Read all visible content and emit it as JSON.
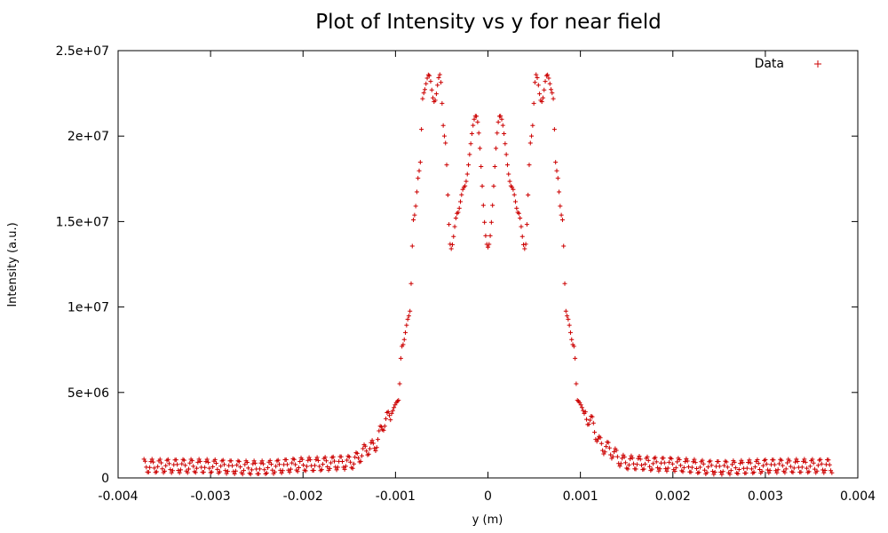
{
  "chart_data": {
    "type": "scatter",
    "title": "Plot of Intensity vs y for near field",
    "xlabel": "y (m)",
    "ylabel": "Intensity (a.u.)",
    "xlim": [
      -0.004,
      0.004
    ],
    "ylim": [
      0,
      25000000
    ],
    "xticks": [
      -0.004,
      -0.003,
      -0.002,
      -0.001,
      0,
      0.001,
      0.002,
      0.003,
      0.004
    ],
    "xtick_labels": [
      "-0.004",
      "-0.003",
      "-0.002",
      "-0.001",
      "0",
      "0.001",
      "0.002",
      "0.003",
      "0.004"
    ],
    "yticks": [
      0,
      5000000,
      10000000,
      15000000,
      20000000,
      25000000
    ],
    "ytick_labels": [
      "0",
      "5e+06",
      "1e+07",
      "1.5e+07",
      "2e+07",
      "2.5e+07"
    ],
    "grid": false,
    "legend_position": "top-right",
    "marker": "+",
    "series": [
      {
        "name": "Data",
        "color": "#cc0000",
        "x_range": [
          -0.00372,
          0.00372
        ],
        "n_points": 601,
        "profile": [
          [
            -0.00372,
            700000
          ],
          [
            -0.00315,
            700000
          ],
          [
            -0.0025,
            600000
          ],
          [
            -0.0019,
            800000
          ],
          [
            -0.0015,
            900000
          ],
          [
            -0.00125,
            1800000
          ],
          [
            -0.00108,
            3500000
          ],
          [
            -0.00097,
            4500000
          ],
          [
            -0.00093,
            7700000
          ],
          [
            -0.00085,
            9500000
          ],
          [
            -0.0008,
            15300000
          ],
          [
            -0.00074,
            18000000
          ],
          [
            -0.0007,
            22500000
          ],
          [
            -0.00064,
            23600000
          ],
          [
            -0.00058,
            22000000
          ],
          [
            -0.00052,
            23600000
          ],
          [
            -0.00047,
            20000000
          ],
          [
            -0.0004,
            13400000
          ],
          [
            -0.00033,
            15500000
          ],
          [
            -0.00026,
            17000000
          ],
          [
            -0.00013,
            21200000
          ],
          [
            0.0,
            13500000
          ],
          [
            0.00013,
            21200000
          ],
          [
            0.00026,
            17000000
          ],
          [
            0.00033,
            15500000
          ],
          [
            0.0004,
            13400000
          ],
          [
            0.00047,
            20000000
          ],
          [
            0.00052,
            23600000
          ],
          [
            0.00058,
            22000000
          ],
          [
            0.00064,
            23600000
          ],
          [
            0.0007,
            22500000
          ],
          [
            0.00074,
            18000000
          ],
          [
            0.0008,
            15300000
          ],
          [
            0.00085,
            9500000
          ],
          [
            0.00093,
            7700000
          ],
          [
            0.00097,
            4500000
          ],
          [
            0.00108,
            3500000
          ],
          [
            0.00125,
            1800000
          ],
          [
            0.0015,
            900000
          ],
          [
            0.0019,
            800000
          ],
          [
            0.0025,
            600000
          ],
          [
            0.00315,
            700000
          ],
          [
            0.00372,
            700000
          ]
        ],
        "ripple_amplitude_outer": 400000,
        "ripple_period": 8.5e-05
      }
    ]
  }
}
